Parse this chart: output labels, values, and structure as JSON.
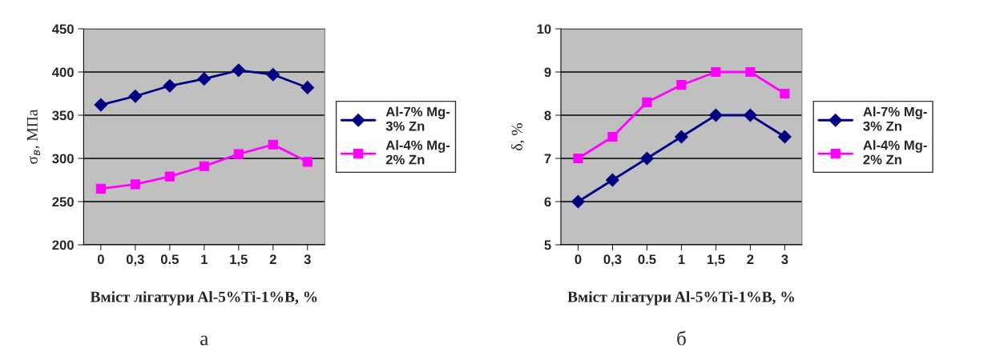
{
  "chart_data": [
    {
      "type": "line",
      "xlabel": "Вміст лігатури Al-5%Ti-1%B, %",
      "ylabel": "σ$_{в}$, МПа",
      "categories": [
        "0",
        "0,3",
        "0.5",
        "1",
        "1,5",
        "2",
        "3"
      ],
      "series": [
        {
          "name": "Al-7% Mg-3% Zn",
          "color": "#000080",
          "marker": "diamond",
          "values": [
            362,
            372,
            384,
            392,
            402,
            397,
            382
          ]
        },
        {
          "name": "Al-4% Mg-2% Zn",
          "color": "#ff00ff",
          "marker": "square",
          "values": [
            265,
            270,
            279,
            291,
            305,
            316,
            296
          ]
        }
      ],
      "ylim": [
        200,
        450
      ],
      "yticks": [
        200,
        250,
        300,
        350,
        400,
        450
      ],
      "grid": "y",
      "legend": "right",
      "annotations": [
        "а"
      ]
    },
    {
      "type": "line",
      "xlabel": "Вміст лігатури Al-5%Ti-1%B, %",
      "ylabel": "δ, %",
      "categories": [
        "0",
        "0,3",
        "0.5",
        "1",
        "1,5",
        "2",
        "3"
      ],
      "series": [
        {
          "name": "Al-7% Mg-3% Zn",
          "color": "#000080",
          "marker": "diamond",
          "values": [
            6,
            6.5,
            7,
            7.5,
            8,
            8,
            7.5
          ]
        },
        {
          "name": "Al-4% Mg-2% Zn",
          "color": "#ff00ff",
          "marker": "square",
          "values": [
            7,
            7.5,
            8.3,
            8.7,
            9,
            9,
            8.5
          ]
        }
      ],
      "ylim": [
        5,
        10
      ],
      "yticks": [
        5,
        6,
        7,
        8,
        9,
        10
      ],
      "grid": "y",
      "legend": "right",
      "annotations": [
        "б"
      ]
    }
  ]
}
